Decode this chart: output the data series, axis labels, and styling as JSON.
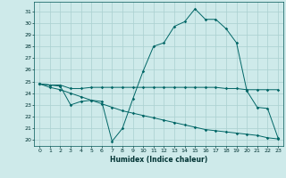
{
  "xlabel": "Humidex (Indice chaleur)",
  "background_color": "#ceeaea",
  "grid_color": "#aad0d0",
  "line_color": "#006666",
  "xlim": [
    -0.5,
    23.5
  ],
  "ylim": [
    19.5,
    31.8
  ],
  "yticks": [
    20,
    21,
    22,
    23,
    24,
    25,
    26,
    27,
    28,
    29,
    30,
    31
  ],
  "xticks": [
    0,
    1,
    2,
    3,
    4,
    5,
    6,
    7,
    8,
    9,
    10,
    11,
    12,
    13,
    14,
    15,
    16,
    17,
    18,
    19,
    20,
    21,
    22,
    23
  ],
  "series1_x": [
    0,
    1,
    2,
    3,
    4,
    5,
    6,
    7,
    8,
    9,
    10,
    11,
    12,
    13,
    14,
    15,
    16,
    17,
    18,
    19,
    20,
    21,
    22,
    23
  ],
  "series1_y": [
    24.8,
    24.7,
    24.7,
    24.4,
    24.4,
    24.5,
    24.5,
    24.5,
    24.5,
    24.5,
    24.5,
    24.5,
    24.5,
    24.5,
    24.5,
    24.5,
    24.5,
    24.5,
    24.4,
    24.4,
    24.3,
    24.3,
    24.3,
    24.3
  ],
  "series2_x": [
    0,
    1,
    2,
    3,
    4,
    5,
    6,
    7,
    8,
    9,
    10,
    11,
    12,
    13,
    14,
    15,
    16,
    17,
    18,
    19,
    20,
    21,
    22,
    23
  ],
  "series2_y": [
    24.8,
    24.7,
    24.6,
    23.0,
    23.3,
    23.4,
    23.3,
    19.9,
    21.0,
    23.5,
    25.9,
    28.0,
    28.3,
    29.7,
    30.1,
    31.2,
    30.3,
    30.3,
    29.5,
    28.3,
    24.2,
    22.8,
    22.7,
    20.2
  ],
  "series3_x": [
    0,
    1,
    2,
    3,
    4,
    5,
    6,
    7,
    8,
    9,
    10,
    11,
    12,
    13,
    14,
    15,
    16,
    17,
    18,
    19,
    20,
    21,
    22,
    23
  ],
  "series3_y": [
    24.8,
    24.5,
    24.3,
    24.0,
    23.7,
    23.4,
    23.1,
    22.8,
    22.5,
    22.3,
    22.1,
    21.9,
    21.7,
    21.5,
    21.3,
    21.1,
    20.9,
    20.8,
    20.7,
    20.6,
    20.5,
    20.4,
    20.2,
    20.1
  ]
}
